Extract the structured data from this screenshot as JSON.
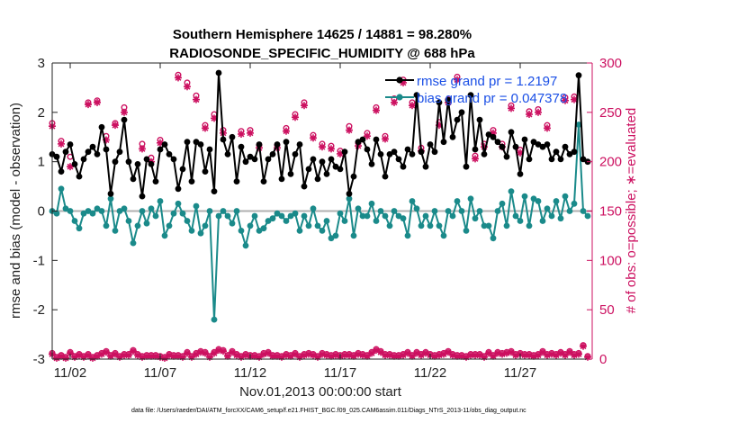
{
  "chart_data": {
    "type": "line",
    "title_line1": "Southern Hemisphere 14625 / 14881 = 98.280%",
    "title_line2": "RADIOSONDE_SPECIFIC_HUMIDITY @ 688 hPa",
    "ylabel_left": "rmse and bias (model - observation)",
    "ylabel_right": "# of obs: o=possible; ∗=evaluated",
    "xlabel": "Nov.01,2013 00:00:00 start",
    "footer": "data file: /Users/raeder/DAI/ATM_forcXX/CAM6_setup/f.e21.FHIST_BGC.f09_025.CAM6assim.011/Diags_NTrS_2013-11/obs_diag_output.nc",
    "xlim": [
      0,
      30
    ],
    "ylim_left": [
      -3,
      3
    ],
    "ylim_right": [
      0,
      300
    ],
    "left_ticks": [
      -3,
      -2,
      -1,
      0,
      1,
      2,
      3
    ],
    "left_tick_labels": [
      "-3",
      "-2",
      "-1",
      "0",
      "1",
      "2",
      "3"
    ],
    "right_ticks": [
      0,
      50,
      100,
      150,
      200,
      250,
      300
    ],
    "right_tick_labels": [
      "0",
      "50",
      "100",
      "150",
      "200",
      "250",
      "300"
    ],
    "x_ticks": [
      1,
      6,
      11,
      16,
      21,
      26
    ],
    "x_tick_labels": [
      "11/02",
      "11/07",
      "11/12",
      "11/17",
      "11/22",
      "11/27"
    ],
    "legend": [
      {
        "name": "rmse",
        "label": "rmse grand pr = 1.2197",
        "color": "#000000"
      },
      {
        "name": "bias",
        "label": "bias grand pr = 0.047378",
        "color": "#1a8a8a"
      }
    ],
    "colors": {
      "rmse": "#000000",
      "bias": "#1a8a8a",
      "obs": "#cc1060",
      "zero_line": "#b0b0b0"
    },
    "x": [
      0,
      0.25,
      0.5,
      0.75,
      1,
      1.25,
      1.5,
      1.75,
      2,
      2.25,
      2.5,
      2.75,
      3,
      3.25,
      3.5,
      3.75,
      4,
      4.25,
      4.5,
      4.75,
      5,
      5.25,
      5.5,
      5.75,
      6,
      6.25,
      6.5,
      6.75,
      7,
      7.25,
      7.5,
      7.75,
      8,
      8.25,
      8.5,
      8.75,
      9,
      9.25,
      9.5,
      9.75,
      10,
      10.25,
      10.5,
      10.75,
      11,
      11.25,
      11.5,
      11.75,
      12,
      12.25,
      12.5,
      12.75,
      13,
      13.25,
      13.5,
      13.75,
      14,
      14.25,
      14.5,
      14.75,
      15,
      15.25,
      15.5,
      15.75,
      16,
      16.25,
      16.5,
      16.75,
      17,
      17.25,
      17.5,
      17.75,
      18,
      18.25,
      18.5,
      18.75,
      19,
      19.25,
      19.5,
      19.75,
      20,
      20.25,
      20.5,
      20.75,
      21,
      21.25,
      21.5,
      21.75,
      22,
      22.25,
      22.5,
      22.75,
      23,
      23.25,
      23.5,
      23.75,
      24,
      24.25,
      24.5,
      24.75,
      25,
      25.25,
      25.5,
      25.75,
      26,
      26.25,
      26.5,
      26.75,
      27,
      27.25,
      27.5,
      27.75,
      28,
      28.25,
      28.5,
      28.75,
      29,
      29.25,
      29.5,
      29.75
    ],
    "rmse": [
      1.15,
      1.1,
      0.8,
      1.2,
      1.35,
      0.95,
      0.7,
      1.05,
      1.2,
      1.3,
      1.15,
      1.7,
      1.25,
      0.35,
      1.0,
      1.2,
      1.85,
      1.0,
      0.65,
      0.95,
      0.3,
      1.05,
      0.95,
      0.6,
      1.25,
      1.35,
      1.15,
      1.05,
      0.45,
      0.85,
      1.4,
      0.6,
      1.4,
      1.35,
      0.8,
      1.25,
      0.4,
      2.8,
      1.45,
      1.15,
      1.5,
      0.6,
      1.3,
      1.0,
      1.1,
      1.05,
      1.35,
      0.6,
      1.05,
      1.15,
      1.35,
      0.65,
      1.4,
      0.75,
      1.15,
      1.35,
      0.5,
      0.85,
      1.05,
      0.65,
      1.0,
      0.75,
      1.05,
      0.9,
      0.85,
      1.2,
      0.35,
      0.7,
      1.4,
      1.45,
      1.25,
      0.95,
      1.45,
      1.15,
      0.7,
      1.15,
      1.2,
      1.05,
      0.9,
      1.25,
      1.15,
      2.35,
      1.2,
      0.9,
      1.35,
      1.2,
      2.2,
      1.4,
      2.25,
      1.5,
      1.85,
      2.0,
      0.9,
      2.35,
      1.25,
      1.85,
      1.15,
      1.55,
      1.5,
      1.4,
      1.3,
      1.1,
      1.6,
      1.3,
      0.75,
      1.45,
      1.05,
      1.4,
      1.35,
      1.3,
      1.35,
      1.05,
      1.2,
      1.05,
      1.3,
      1.15,
      1.2,
      2.75,
      1.05,
      1.0
    ],
    "bias": [
      0.0,
      -0.05,
      0.45,
      0.05,
      0.0,
      -0.2,
      -0.35,
      -0.05,
      0.0,
      -0.05,
      0.05,
      0.0,
      -0.3,
      0.25,
      -0.4,
      0.0,
      0.05,
      -0.2,
      -0.65,
      -0.3,
      0.0,
      -0.25,
      0.05,
      -0.1,
      0.2,
      -0.5,
      -0.3,
      -0.05,
      0.15,
      -0.05,
      -0.2,
      -0.4,
      0.1,
      -0.45,
      -0.3,
      0.0,
      -2.2,
      -0.1,
      0.0,
      -0.1,
      -0.25,
      0.0,
      -0.4,
      -0.7,
      -0.3,
      -0.1,
      -0.4,
      -0.35,
      -0.2,
      -0.15,
      -0.05,
      -0.1,
      -0.2,
      -0.1,
      -0.05,
      -0.4,
      -0.1,
      -0.3,
      0.05,
      -0.3,
      -0.4,
      -0.2,
      -0.55,
      -0.5,
      -0.05,
      -0.2,
      0.25,
      -0.5,
      0.05,
      -0.1,
      -0.1,
      0.15,
      -0.2,
      0.0,
      -0.1,
      -0.3,
      0.0,
      -0.1,
      -0.15,
      -0.5,
      0.2,
      0.05,
      -0.3,
      -0.1,
      -0.3,
      0.0,
      -0.3,
      -0.5,
      0.0,
      -0.1,
      0.2,
      0.0,
      -0.4,
      0.25,
      -0.15,
      0.0,
      -0.3,
      -0.3,
      -0.55,
      0.0,
      0.15,
      -0.3,
      0.4,
      -0.1,
      -0.2,
      0.3,
      -0.3,
      0.25,
      0.2,
      -0.2,
      0.05,
      -0.1,
      0.2,
      -0.15,
      0.3,
      0.0,
      0.15,
      1.75,
      0.0,
      -0.1
    ],
    "obs_possible": [
      239,
      null,
      221,
      null,
      205,
      null,
      null,
      null,
      260,
      null,
      262,
      null,
      226,
      null,
      239,
      null,
      255,
      null,
      null,
      null,
      218,
      null,
      204,
      null,
      222,
      null,
      null,
      null,
      288,
      null,
      280,
      null,
      267,
      null,
      237,
      null,
      248,
      null,
      232,
      null,
      null,
      null,
      231,
      null,
      232,
      null,
      217,
      null,
      null,
      null,
      217,
      null,
      234,
      null,
      248,
      null,
      260,
      null,
      227,
      null,
      218,
      null,
      216,
      null,
      211,
      null,
      236,
      null,
      219,
      null,
      229,
      null,
      255,
      null,
      226,
      null,
      264,
      null,
      283,
      null,
      260,
      null,
      214,
      null,
      null,
      null,
      240,
      null,
      263,
      null,
      286,
      null,
      null,
      null,
      206,
      null,
      218,
      null,
      232,
      null,
      218,
      null,
      257,
      null,
      212,
      null,
      251,
      null,
      253,
      null,
      237,
      null,
      null,
      null,
      265,
      null,
      266,
      null
    ],
    "obs_evaluated": [
      236,
      null,
      218,
      null,
      195,
      null,
      null,
      null,
      258,
      null,
      260,
      null,
      222,
      null,
      237,
      null,
      250,
      null,
      null,
      null,
      213,
      null,
      200,
      null,
      219,
      null,
      null,
      null,
      285,
      null,
      276,
      null,
      263,
      null,
      234,
      null,
      244,
      null,
      229,
      null,
      null,
      null,
      228,
      null,
      229,
      null,
      214,
      null,
      null,
      null,
      214,
      null,
      231,
      null,
      245,
      null,
      257,
      null,
      224,
      null,
      215,
      null,
      213,
      null,
      208,
      null,
      232,
      null,
      216,
      null,
      226,
      null,
      252,
      null,
      223,
      null,
      260,
      null,
      280,
      null,
      257,
      null,
      211,
      null,
      null,
      null,
      237,
      null,
      260,
      null,
      283,
      null,
      null,
      null,
      203,
      null,
      215,
      null,
      229,
      null,
      215,
      null,
      254,
      null,
      209,
      null,
      248,
      null,
      250,
      null,
      234,
      null,
      null,
      null,
      262,
      null,
      263,
      null
    ],
    "obs_low_possible": [
      6,
      2,
      4,
      2,
      7,
      3,
      5,
      3,
      5,
      2,
      4,
      6,
      8,
      4,
      6,
      3,
      5,
      5,
      9,
      5,
      3,
      4,
      4,
      4,
      3,
      2,
      5,
      4,
      4,
      3,
      7,
      3,
      6,
      8,
      7,
      3,
      7,
      10,
      9,
      4,
      8,
      5,
      3,
      5,
      4,
      4,
      3,
      6,
      7,
      4,
      4,
      3,
      5,
      4,
      6,
      3,
      5,
      6,
      5,
      3,
      6,
      5,
      4,
      5,
      4,
      5,
      5,
      4,
      6,
      5,
      4,
      7,
      10,
      8,
      5,
      5,
      4,
      4,
      5,
      7,
      4,
      7,
      5,
      7,
      5,
      4,
      5,
      6,
      8,
      5,
      4,
      4,
      3,
      5,
      5,
      5,
      3,
      7,
      4,
      7,
      6,
      7,
      8,
      5,
      6,
      5,
      5,
      4,
      5,
      8,
      5,
      6,
      5,
      7,
      5,
      8,
      5,
      6,
      14,
      3
    ],
    "obs_low_evaluated": [
      5,
      1,
      3,
      1,
      6,
      2,
      4,
      2,
      4,
      1,
      3,
      5,
      7,
      3,
      5,
      2,
      4,
      4,
      8,
      4,
      2,
      3,
      3,
      3,
      2,
      1,
      4,
      3,
      3,
      2,
      6,
      2,
      5,
      7,
      6,
      2,
      6,
      9,
      8,
      3,
      7,
      4,
      2,
      4,
      3,
      3,
      2,
      5,
      6,
      3,
      3,
      2,
      4,
      3,
      5,
      2,
      4,
      5,
      4,
      2,
      5,
      4,
      3,
      4,
      3,
      4,
      4,
      3,
      5,
      4,
      3,
      6,
      9,
      7,
      4,
      4,
      3,
      3,
      4,
      6,
      3,
      6,
      4,
      6,
      4,
      3,
      4,
      5,
      7,
      4,
      3,
      3,
      2,
      4,
      4,
      4,
      2,
      6,
      3,
      6,
      5,
      6,
      7,
      4,
      5,
      4,
      4,
      3,
      4,
      7,
      4,
      5,
      4,
      6,
      4,
      7,
      4,
      5,
      13,
      2
    ]
  }
}
